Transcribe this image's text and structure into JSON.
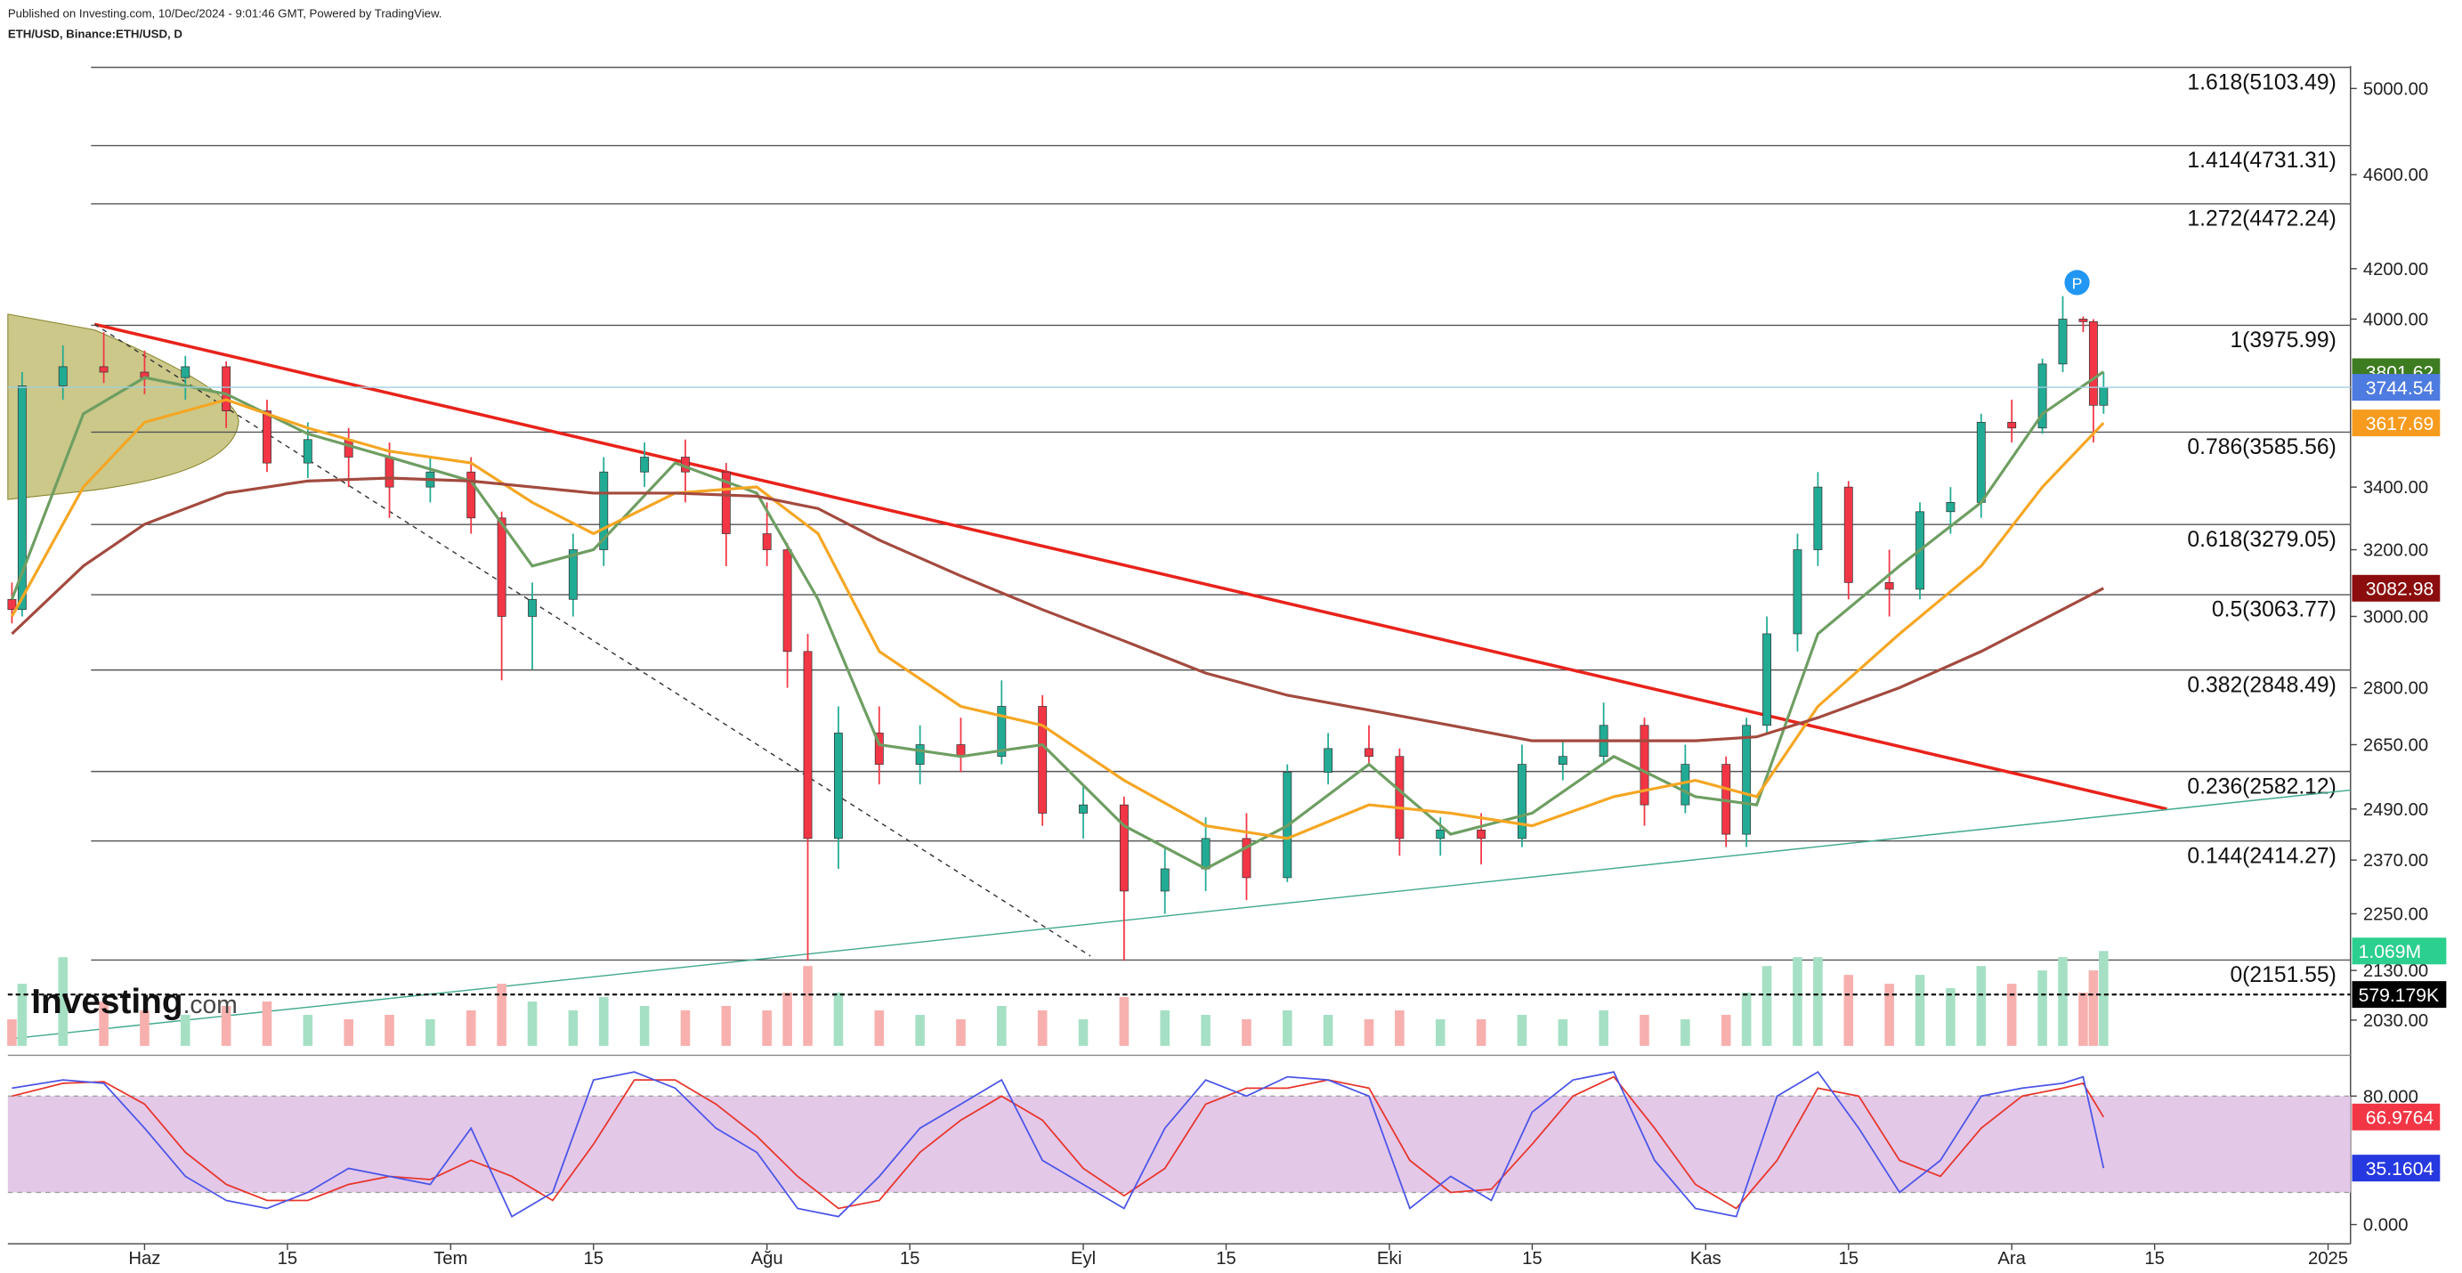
{
  "header": {
    "line1": "Published on Investing.com, 10/Dec/2024 - 9:01:46 GMT, Powered by TradingView.",
    "line2": "ETH/USD, Binance:ETH/USD, D"
  },
  "watermark": "Investing",
  "watermark_suffix": ".com",
  "chart_data": {
    "type": "candlestick",
    "log_scale": true,
    "xlim": [
      -13.4,
      216.2
    ],
    "ylim": [
      1980,
      5110
    ],
    "xticks": [
      {
        "value": 0,
        "label": "Haz"
      },
      {
        "value": 14,
        "label": "15"
      },
      {
        "value": 30,
        "label": "Tem"
      },
      {
        "value": 44,
        "label": "15"
      },
      {
        "value": 61,
        "label": "Ağu"
      },
      {
        "value": 75,
        "label": "15"
      },
      {
        "value": 92,
        "label": "Eyl"
      },
      {
        "value": 106,
        "label": "15"
      },
      {
        "value": 122,
        "label": "Eki"
      },
      {
        "value": 136,
        "label": "15"
      },
      {
        "value": 153,
        "label": "Kas"
      },
      {
        "value": 167,
        "label": "15"
      },
      {
        "value": 183,
        "label": "Ara"
      },
      {
        "value": 197,
        "label": "15"
      },
      {
        "value": 214,
        "label": "2025"
      }
    ],
    "yticks": [
      {
        "value": 5000,
        "label": "5000.00"
      },
      {
        "value": 4600,
        "label": "4600.00"
      },
      {
        "value": 4200,
        "label": "4200.00"
      },
      {
        "value": 4000,
        "label": "4000.00"
      },
      {
        "value": 3400,
        "label": "3400.00"
      },
      {
        "value": 3200,
        "label": "3200.00"
      },
      {
        "value": 3000,
        "label": "3000.00"
      },
      {
        "value": 2800,
        "label": "2800.00"
      },
      {
        "value": 2650,
        "label": "2650.00"
      },
      {
        "value": 2490,
        "label": "2490.00"
      },
      {
        "value": 2370,
        "label": "2370.00"
      },
      {
        "value": 2250,
        "label": "2250.00"
      },
      {
        "value": 2130,
        "label": "2130.00"
      },
      {
        "value": 2030,
        "label": "2030.00"
      }
    ],
    "up_color": "#22ab94",
    "down_color": "#f23645",
    "x": [
      -13,
      -12,
      -8,
      -4,
      0,
      4,
      8,
      12,
      16,
      20,
      24,
      28,
      32,
      35,
      38,
      42,
      45,
      49,
      53,
      57,
      61,
      63,
      65,
      68,
      72,
      76,
      80,
      84,
      88,
      92,
      96,
      100,
      104,
      108,
      112,
      116,
      120,
      123,
      127,
      131,
      135,
      139,
      143,
      147,
      151,
      155,
      157,
      159,
      162,
      164,
      167,
      171,
      174,
      177,
      180,
      183,
      186,
      188,
      190,
      191,
      192
    ],
    "open": [
      3050,
      3020,
      3750,
      3820,
      3800,
      3780,
      3820,
      3660,
      3480,
      3560,
      3500,
      3400,
      3450,
      3300,
      3000,
      3050,
      3200,
      3450,
      3500,
      3450,
      3250,
      3200,
      2900,
      2420,
      2680,
      2600,
      2650,
      2620,
      2750,
      2480,
      2500,
      2300,
      2350,
      2420,
      2330,
      2580,
      2640,
      2620,
      2420,
      2440,
      2420,
      2600,
      2620,
      2700,
      2500,
      2600,
      2430,
      2700,
      2950,
      3200,
      3400,
      3100,
      3080,
      3320,
      3350,
      3620,
      3600,
      3830,
      4000,
      3990,
      3680
    ],
    "high": [
      3100,
      3800,
      3900,
      3950,
      3880,
      3860,
      3840,
      3700,
      3620,
      3600,
      3550,
      3500,
      3500,
      3320,
      3100,
      3250,
      3500,
      3550,
      3560,
      3480,
      3350,
      3220,
      2950,
      2750,
      2750,
      2700,
      2720,
      2820,
      2780,
      2550,
      2520,
      2400,
      2470,
      2480,
      2600,
      2680,
      2700,
      2640,
      2470,
      2480,
      2650,
      2660,
      2760,
      2720,
      2650,
      2620,
      2720,
      3000,
      3250,
      3450,
      3420,
      3200,
      3350,
      3400,
      3650,
      3700,
      3850,
      4090,
      4010,
      4000,
      3800
    ],
    "low": [
      2980,
      3000,
      3700,
      3760,
      3720,
      3700,
      3600,
      3450,
      3430,
      3400,
      3300,
      3350,
      3250,
      2820,
      2850,
      3000,
      3150,
      3400,
      3350,
      3150,
      3150,
      2800,
      2150,
      2350,
      2550,
      2550,
      2580,
      2600,
      2450,
      2420,
      2150,
      2250,
      2300,
      2280,
      2320,
      2550,
      2600,
      2380,
      2380,
      2360,
      2400,
      2560,
      2600,
      2450,
      2480,
      2400,
      2400,
      2680,
      2900,
      3150,
      3050,
      3000,
      3050,
      3250,
      3300,
      3550,
      3580,
      3800,
      3950,
      3550,
      3650
    ],
    "close": [
      3020,
      3750,
      3820,
      3800,
      3780,
      3820,
      3660,
      3480,
      3560,
      3500,
      3400,
      3450,
      3300,
      3000,
      3050,
      3200,
      3450,
      3500,
      3450,
      3250,
      3200,
      2900,
      2420,
      2680,
      2600,
      2650,
      2620,
      2750,
      2480,
      2500,
      2300,
      2350,
      2420,
      2330,
      2580,
      2640,
      2620,
      2420,
      2440,
      2420,
      2600,
      2620,
      2700,
      2500,
      2600,
      2430,
      2700,
      2950,
      3200,
      3400,
      3100,
      3080,
      3320,
      3350,
      3620,
      3600,
      3830,
      4000,
      3990,
      3680,
      3745
    ],
    "volume": {
      "ylim": [
        0,
        1150000
      ],
      "up_color": "#a6e0c4",
      "down_color": "#f7b0ae",
      "values": [
        300000,
        700000,
        1000000,
        500000,
        400000,
        350000,
        450000,
        500000,
        350000,
        300000,
        350000,
        300000,
        400000,
        700000,
        500000,
        400000,
        550000,
        450000,
        400000,
        450000,
        400000,
        600000,
        900000,
        600000,
        400000,
        350000,
        300000,
        450000,
        400000,
        300000,
        550000,
        400000,
        350000,
        300000,
        400000,
        350000,
        300000,
        400000,
        300000,
        300000,
        350000,
        300000,
        400000,
        350000,
        300000,
        350000,
        600000,
        900000,
        1000000,
        1000000,
        800000,
        700000,
        800000,
        650000,
        900000,
        700000,
        850000,
        1000000,
        600000,
        850000,
        1069000
      ]
    },
    "moving_averages": [
      {
        "color": "#6e9e62",
        "x": [
          -13,
          -6,
          0,
          8,
          16,
          24,
          32,
          38,
          44,
          52,
          60,
          66,
          72,
          80,
          88,
          96,
          104,
          112,
          120,
          128,
          136,
          144,
          152,
          158,
          164,
          172,
          180,
          186,
          192
        ],
        "values": [
          3050,
          3650,
          3780,
          3720,
          3580,
          3500,
          3420,
          3150,
          3200,
          3480,
          3380,
          3050,
          2650,
          2620,
          2650,
          2450,
          2350,
          2450,
          2600,
          2430,
          2480,
          2620,
          2520,
          2500,
          2950,
          3150,
          3350,
          3650,
          3801.62
        ]
      },
      {
        "color": "#f5a623",
        "x": [
          -13,
          -6,
          0,
          8,
          16,
          24,
          32,
          38,
          44,
          52,
          60,
          66,
          72,
          80,
          88,
          96,
          104,
          112,
          120,
          128,
          136,
          144,
          152,
          158,
          164,
          172,
          180,
          186,
          192
        ],
        "values": [
          3000,
          3400,
          3620,
          3700,
          3600,
          3520,
          3480,
          3350,
          3250,
          3380,
          3400,
          3250,
          2900,
          2750,
          2700,
          2560,
          2450,
          2420,
          2500,
          2480,
          2450,
          2520,
          2560,
          2520,
          2750,
          2950,
          3150,
          3400,
          3617.69
        ]
      },
      {
        "color": "#a34a3f",
        "x": [
          -13,
          -6,
          0,
          8,
          16,
          24,
          32,
          38,
          44,
          52,
          60,
          66,
          72,
          80,
          88,
          96,
          104,
          112,
          120,
          128,
          136,
          144,
          152,
          158,
          164,
          172,
          180,
          186,
          192
        ],
        "values": [
          2950,
          3150,
          3280,
          3380,
          3420,
          3430,
          3420,
          3400,
          3380,
          3380,
          3370,
          3330,
          3230,
          3120,
          3020,
          2930,
          2840,
          2780,
          2740,
          2700,
          2660,
          2660,
          2660,
          2670,
          2720,
          2800,
          2900,
          2990,
          3082.98
        ]
      }
    ],
    "fib_levels": [
      {
        "value": 5103.49,
        "label": "1.618(5103.49)"
      },
      {
        "value": 4731.31,
        "label": "1.414(4731.31)"
      },
      {
        "value": 4472.24,
        "label": "1.272(4472.24)"
      },
      {
        "value": 3975.99,
        "label": "1(3975.99)"
      },
      {
        "value": 3585.56,
        "label": "0.786(3585.56)"
      },
      {
        "value": 3279.05,
        "label": "0.618(3279.05)"
      },
      {
        "value": 3063.77,
        "label": "0.5(3063.77)"
      },
      {
        "value": 2848.49,
        "label": "0.382(2848.49)"
      },
      {
        "value": 2582.12,
        "label": "0.236(2582.12)"
      },
      {
        "value": 2414.27,
        "label": "0.144(2414.27)"
      },
      {
        "value": 2151.55,
        "label": "0(2151.55)"
      }
    ],
    "price_badges": [
      {
        "value": 3801.62,
        "color": "#3e7c22"
      },
      {
        "value": 3744.54,
        "color": "#4d7be0",
        "line": true
      },
      {
        "value": 3617.69,
        "color": "#f79b1e"
      },
      {
        "value": 3082.98,
        "color": "#8b0d0d"
      }
    ],
    "volume_badges": [
      {
        "value": 1069000,
        "label": "1.069M",
        "color": "#2bcf8e"
      },
      {
        "value": 579179,
        "label": "579.179K",
        "color": "#000000",
        "line": true
      }
    ],
    "trendlines": [
      {
        "color": "#e8231b",
        "width": 2,
        "dashed": false,
        "x": [
          -4.9,
          198.2
        ],
        "values": [
          3980,
          2490
        ]
      },
      {
        "color": "#333333",
        "width": 0.8,
        "dashed": true,
        "x": [
          -4.9,
          92.7
        ],
        "values": [
          3980,
          2160
        ]
      },
      {
        "color": "#3fa88c",
        "width": 0.8,
        "dashed": false,
        "x": [
          -13,
          216.2
        ],
        "values": [
          1994,
          2536
        ]
      }
    ],
    "marker": {
      "x": 189.4,
      "value": 4144,
      "label": "P",
      "color": "#2196f3"
    },
    "stochastic": {
      "ylim": [
        -10,
        100.5
      ],
      "yticks": [
        {
          "value": 80,
          "label": "80.000"
        },
        {
          "value": 0,
          "label": "0.000"
        }
      ],
      "band": [
        20,
        80
      ],
      "band_color": "#e3c8e8",
      "x": [
        -13,
        -8,
        -4,
        0,
        4,
        8,
        12,
        16,
        20,
        24,
        28,
        32,
        36,
        40,
        44,
        48,
        52,
        56,
        60,
        64,
        68,
        72,
        76,
        80,
        84,
        88,
        92,
        96,
        100,
        104,
        108,
        112,
        116,
        120,
        124,
        128,
        132,
        136,
        140,
        144,
        148,
        152,
        156,
        160,
        164,
        168,
        172,
        176,
        180,
        184,
        188,
        190,
        192
      ],
      "k": {
        "color": "#4b55e8",
        "values": [
          85,
          90,
          88,
          60,
          30,
          15,
          10,
          20,
          35,
          30,
          25,
          60,
          5,
          20,
          90,
          95,
          85,
          60,
          45,
          10,
          5,
          30,
          60,
          75,
          90,
          40,
          25,
          10,
          60,
          90,
          80,
          92,
          90,
          80,
          10,
          30,
          15,
          70,
          90,
          95,
          40,
          10,
          5,
          80,
          95,
          60,
          20,
          40,
          80,
          85,
          88,
          92,
          35.1604
        ]
      },
      "d": {
        "color": "#e8352b",
        "values": [
          80,
          88,
          89,
          75,
          45,
          25,
          15,
          15,
          25,
          30,
          28,
          40,
          30,
          15,
          50,
          90,
          90,
          75,
          55,
          30,
          10,
          15,
          45,
          65,
          80,
          65,
          35,
          18,
          35,
          75,
          85,
          85,
          90,
          85,
          40,
          20,
          22,
          50,
          80,
          92,
          60,
          25,
          10,
          40,
          85,
          80,
          40,
          30,
          60,
          80,
          85,
          88,
          66.9764
        ]
      },
      "badges": [
        {
          "value": 66.9764,
          "color": "#f23645"
        },
        {
          "value": 35.1604,
          "color": "#2638e0"
        }
      ]
    }
  }
}
